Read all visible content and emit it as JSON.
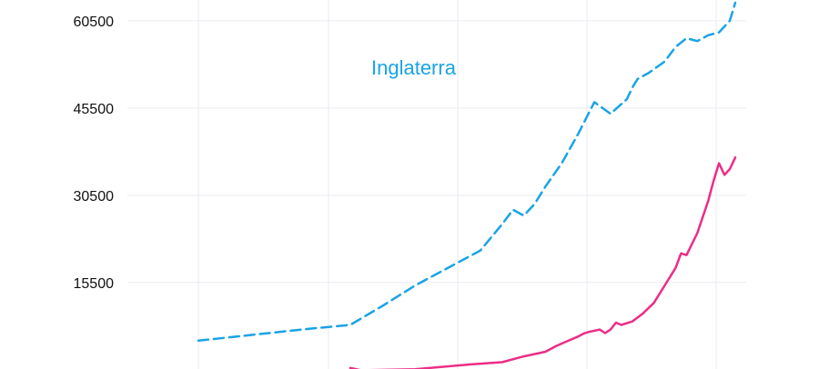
{
  "chart_data": {
    "type": "line",
    "title": "",
    "xlabel": "",
    "ylabel": "",
    "ylim": [
      0,
      63600
    ],
    "y_ticks": [
      "15500",
      "30500",
      "45500",
      "60500"
    ],
    "grid": {
      "x": true,
      "y": true
    },
    "colors": {
      "series_1": "#1aa3e6",
      "series_2": "#ec2d86",
      "grid": "#e8ebf0",
      "text": "#111111"
    },
    "annotations": [
      {
        "text": "Inglaterra",
        "series": 0,
        "color": "#1aa3e6"
      }
    ],
    "series": [
      {
        "name": "",
        "style": "dashed",
        "x": [
          0,
          10,
          20,
          28,
          34,
          40,
          47,
          52,
          56,
          58,
          60,
          62,
          64,
          67,
          70,
          73,
          76,
          79,
          80,
          81,
          83,
          86,
          88,
          90,
          92,
          94,
          96,
          98,
          99
        ],
        "values": [
          5500,
          6500,
          7500,
          8200,
          11500,
          15000,
          18500,
          21000,
          25500,
          28000,
          27000,
          29000,
          32000,
          36000,
          41000,
          46500,
          44500,
          47000,
          49000,
          50500,
          51500,
          53500,
          56000,
          57500,
          57000,
          58000,
          58500,
          60500,
          63600
        ]
      },
      {
        "name": "",
        "style": "solid",
        "x": [
          28,
          30,
          40,
          50,
          56,
          60,
          64,
          66,
          68,
          70,
          71,
          72,
          74,
          75,
          76,
          77,
          78,
          80,
          82,
          84,
          86,
          88,
          89,
          90,
          92,
          94,
          95,
          96,
          97,
          98,
          99
        ],
        "values": [
          800,
          400,
          600,
          1400,
          1800,
          2800,
          3600,
          4600,
          5400,
          6200,
          6700,
          7000,
          7400,
          6800,
          7400,
          8600,
          8200,
          8800,
          10200,
          12000,
          15000,
          18000,
          20500,
          20200,
          24000,
          29500,
          33000,
          36000,
          34000,
          35000,
          37000
        ]
      }
    ]
  }
}
